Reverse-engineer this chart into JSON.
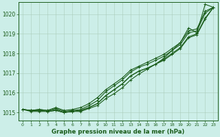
{
  "background_color": "#cceee8",
  "plot_bg_color": "#cceee8",
  "grid_color": "#aaccbb",
  "line_color": "#1a5c1a",
  "xlabel": "Graphe pression niveau de la mer (hPa)",
  "xlim": [
    -0.5,
    23.5
  ],
  "ylim": [
    1014.6,
    1020.6
  ],
  "yticks": [
    1015,
    1016,
    1017,
    1018,
    1019,
    1020
  ],
  "xticks": [
    0,
    1,
    2,
    3,
    4,
    5,
    6,
    7,
    8,
    9,
    10,
    11,
    12,
    13,
    14,
    15,
    16,
    17,
    18,
    19,
    20,
    21,
    22,
    23
  ],
  "series": [
    [
      1015.15,
      1015.1,
      1015.1,
      1015.05,
      1015.15,
      1015.0,
      1015.05,
      1015.1,
      1015.25,
      1015.45,
      1015.85,
      1016.15,
      1016.45,
      1016.85,
      1017.1,
      1017.25,
      1017.45,
      1017.7,
      1018.0,
      1018.3,
      1018.85,
      1019.0,
      1019.8,
      1020.35
    ],
    [
      1015.15,
      1015.05,
      1015.05,
      1015.05,
      1015.1,
      1015.0,
      1015.05,
      1015.1,
      1015.25,
      1015.45,
      1015.85,
      1016.15,
      1016.45,
      1016.85,
      1017.1,
      1017.25,
      1017.45,
      1017.65,
      1017.95,
      1018.25,
      1018.8,
      1018.95,
      1019.75,
      1020.35
    ],
    [
      1015.15,
      1015.1,
      1015.15,
      1015.1,
      1015.2,
      1015.05,
      1015.1,
      1015.15,
      1015.35,
      1015.6,
      1016.05,
      1016.35,
      1016.65,
      1017.05,
      1017.3,
      1017.45,
      1017.65,
      1017.85,
      1018.15,
      1018.45,
      1019.05,
      1019.15,
      1020.05,
      1020.35
    ],
    [
      1015.15,
      1015.1,
      1015.15,
      1015.1,
      1015.25,
      1015.1,
      1015.15,
      1015.25,
      1015.45,
      1015.75,
      1016.15,
      1016.45,
      1016.75,
      1017.15,
      1017.35,
      1017.55,
      1017.75,
      1017.95,
      1018.25,
      1018.55,
      1019.15,
      1019.25,
      1020.15,
      1020.35
    ]
  ],
  "outlier_series": [
    1015.15,
    1015.1,
    1015.1,
    1015.05,
    1015.1,
    1015.0,
    1015.05,
    1015.05,
    1015.2,
    1015.35,
    1015.7,
    1015.95,
    1016.25,
    1016.65,
    1016.95,
    1017.2,
    1017.45,
    1017.75,
    1018.15,
    1018.55,
    1019.3,
    1019.05,
    1020.5,
    1020.35
  ]
}
